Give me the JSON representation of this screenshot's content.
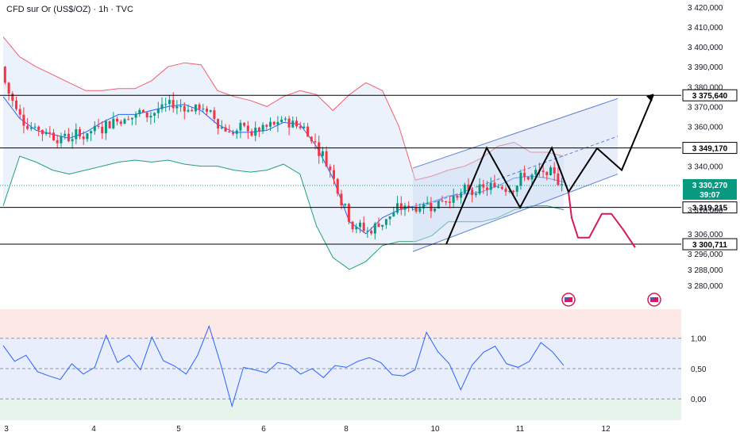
{
  "header": {
    "title": "CFD sur Or (US$/OZ) · 1h · TVC"
  },
  "colors": {
    "up": "#089981",
    "down": "#f23645",
    "bb_upper": "#f06070",
    "bb_lower": "#22a07a",
    "bb_basis": "#2962ff",
    "bb_fill": "#e7f0fb",
    "rsi_line": "#2962ff",
    "projection_black": "#000000",
    "projection_red": "#d6195a",
    "channel": "#5c7fd6"
  },
  "price_axis": {
    "ticks": [
      "3 420,000",
      "3 410,000",
      "3 400,000",
      "3 390,000",
      "3 380,000",
      "3 370,000",
      "3 360,000",
      "3 340,000",
      "3 318,000",
      "3 306,000",
      "3 296,000",
      "3 288,000",
      "3 280,000"
    ],
    "tick_values": [
      3420,
      3410,
      3400,
      3390,
      3380,
      3370,
      3360,
      3340,
      3318,
      3306,
      3296,
      3288,
      3280
    ]
  },
  "levels": [
    {
      "label": "3 375,640",
      "value": 3375.64
    },
    {
      "label": "3 349,170",
      "value": 3349.17
    },
    {
      "label": "3 319,215",
      "value": 3319.215
    },
    {
      "label": "3 300,711",
      "value": 3300.711
    }
  ],
  "current_price": {
    "label": "3 330,270",
    "countdown": "39:07",
    "value": 3330.27
  },
  "rsi_axis": {
    "ticks": [
      "1,00",
      "0,50",
      "0,00"
    ],
    "tick_values": [
      1.0,
      0.5,
      0.0
    ]
  },
  "date_axis": {
    "labels": [
      "3",
      "4",
      "5",
      "6",
      "8",
      "10",
      "11",
      "12"
    ]
  },
  "chart_data": {
    "type": "candlestick",
    "title": "CFD sur Or (US$/OZ) · 1h · TVC",
    "instrument": "CFD sur Or (US$/OZ)",
    "timeframe": "1h",
    "source": "TVC",
    "x_dates": [
      "3",
      "4",
      "5",
      "6",
      "8",
      "10",
      "11",
      "12"
    ],
    "bollinger_upper": [
      3405,
      3395,
      3390,
      3386,
      3382,
      3378,
      3378,
      3379,
      3379,
      3383,
      3390,
      3392,
      3391,
      3378,
      3375,
      3373,
      3370,
      3375,
      3378,
      3376,
      3368,
      3376,
      3382,
      3378,
      3360,
      3333,
      3335,
      3338,
      3340,
      3344,
      3350,
      3352,
      3347,
      3347,
      3345
    ],
    "bollinger_basis": [
      3375,
      3364,
      3358,
      3356,
      3354,
      3357,
      3362,
      3366,
      3366,
      3368,
      3370,
      3371,
      3368,
      3361,
      3357,
      3357,
      3358,
      3362,
      3361,
      3350,
      3334,
      3312,
      3306,
      3314,
      3318,
      3320,
      3322,
      3325,
      3326,
      3327,
      3330,
      3334,
      3335,
      3334,
      3332
    ],
    "bollinger_lower": [
      3320,
      3345,
      3342,
      3338,
      3336,
      3338,
      3340,
      3342,
      3343,
      3342,
      3343,
      3341,
      3340,
      3340,
      3338,
      3337,
      3338,
      3341,
      3336,
      3310,
      3294,
      3288,
      3292,
      3300,
      3302,
      3302,
      3305,
      3312,
      3312,
      3312,
      3314,
      3318,
      3320,
      3320,
      3318
    ],
    "rsi": [
      0.88,
      0.62,
      0.72,
      0.45,
      0.38,
      0.32,
      0.58,
      0.41,
      0.52,
      1.05,
      0.6,
      0.72,
      0.48,
      1.02,
      0.63,
      0.54,
      0.41,
      0.72,
      1.2,
      0.58,
      -0.12,
      0.52,
      0.48,
      0.43,
      0.6,
      0.56,
      0.41,
      0.5,
      0.35,
      0.55,
      0.52,
      0.62,
      0.68,
      0.6,
      0.4,
      0.38,
      0.48,
      1.1,
      0.78,
      0.58,
      0.15,
      0.56,
      0.77,
      0.87,
      0.58,
      0.52,
      0.62,
      0.93,
      0.78,
      0.55
    ],
    "rsi_thresholds": [
      1.0,
      0.5,
      0.0
    ],
    "ylim": [
      3276,
      3422
    ],
    "rsi_ylim": [
      -0.35,
      1.48
    ],
    "horizontal_levels": [
      3375.64,
      3349.17,
      3319.215,
      3300.711
    ],
    "current_price": 3330.27
  }
}
